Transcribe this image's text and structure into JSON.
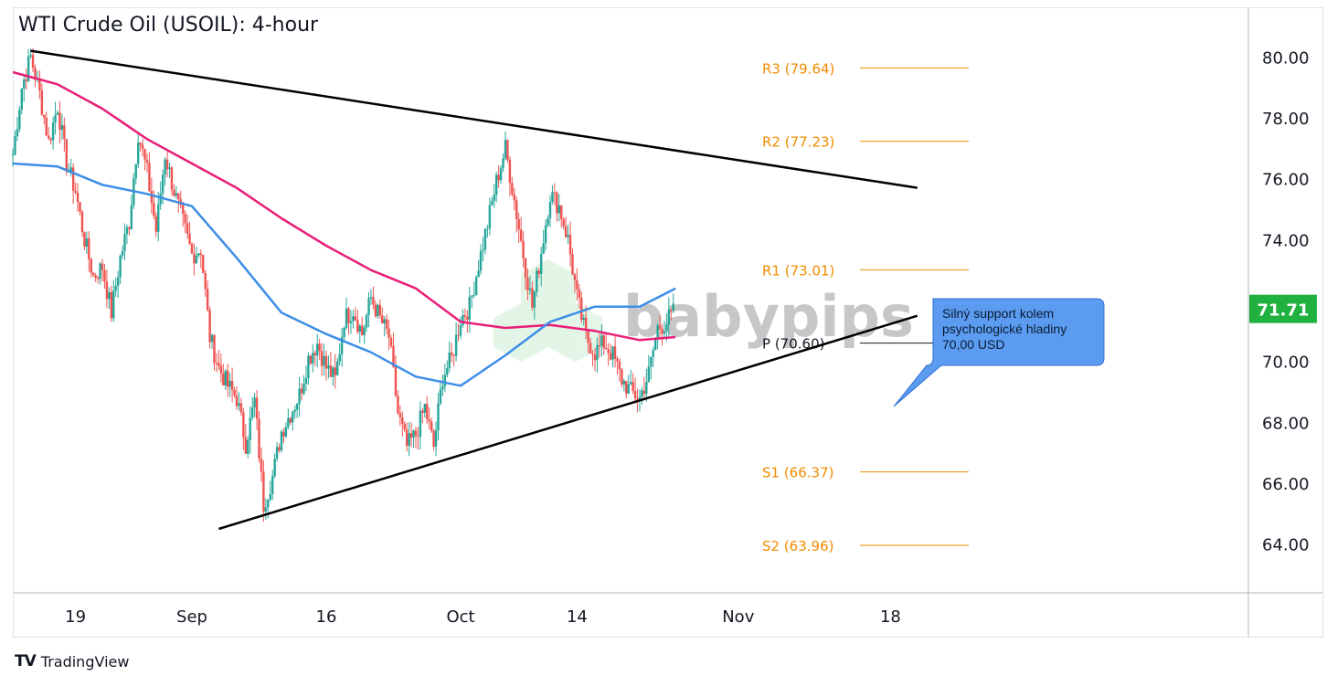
{
  "title": "WTI Crude Oil (USOIL): 4-hour",
  "watermark": "babypips",
  "footer": {
    "brand": "TradingView",
    "logo_icon": "tradingview-logo-icon"
  },
  "colors": {
    "bull": "#26a69a",
    "bear": "#ef5350",
    "ma_slow": "#e91e78",
    "ma_fast": "#3d8ee8",
    "pivot": "#f08c00",
    "trendline": "#000000",
    "last_price_bg": "#21b140",
    "annotation_bg": "#5b9cf0",
    "annotation_border": "#2f6fd0"
  },
  "annotation": {
    "lines": [
      "Silný support kolem",
      "psychologické hladiny",
      "70,00 USD"
    ]
  },
  "chart_data": {
    "type": "candlestick",
    "symbol": "USOIL",
    "timeframe": "4-hour",
    "ylim": [
      62.4,
      81.6
    ],
    "y_ticks": [
      "80.00",
      "78.00",
      "76.00",
      "74.00",
      "72.00",
      "70.00",
      "68.00",
      "66.00",
      "64.00"
    ],
    "x_ticks": [
      "19",
      "Sep",
      "16",
      "Oct",
      "14",
      "Nov",
      "18"
    ],
    "last_price": "71.71",
    "pivot_levels": [
      {
        "label": "R3 (79.64)",
        "value": 79.64
      },
      {
        "label": "R2 (77.23)",
        "value": 77.23
      },
      {
        "label": "R1 (73.01)",
        "value": 73.01
      },
      {
        "label": "P (70.60)",
        "value": 70.6
      },
      {
        "label": "S1 (66.37)",
        "value": 66.37
      },
      {
        "label": "S2 (63.96)",
        "value": 63.96
      }
    ],
    "trendlines": [
      {
        "name": "descending-resistance",
        "from": {
          "date": "Aug 14",
          "price": 80.2
        },
        "to": {
          "date": "Nov 21",
          "price": 75.7
        }
      },
      {
        "name": "rising-support",
        "from": {
          "date": "Sep 4",
          "price": 64.5
        },
        "to": {
          "date": "Nov 21",
          "price": 71.5
        }
      }
    ],
    "close_path": [
      [
        "Aug 12",
        76.8
      ],
      [
        "Aug 13",
        79.0
      ],
      [
        "Aug 14",
        80.0
      ],
      [
        "Aug 15",
        78.8
      ],
      [
        "Aug 16",
        77.2
      ],
      [
        "Aug 17",
        78.4
      ],
      [
        "Aug 18",
        76.5
      ],
      [
        "Aug 19",
        75.6
      ],
      [
        "Aug 20",
        74.0
      ],
      [
        "Aug 21",
        72.8
      ],
      [
        "Aug 22",
        73.1
      ],
      [
        "Aug 23",
        71.6
      ],
      [
        "Aug 24",
        73.4
      ],
      [
        "Aug 25",
        74.6
      ],
      [
        "Aug 26",
        77.5
      ],
      [
        "Aug 27",
        76.2
      ],
      [
        "Aug 28",
        74.3
      ],
      [
        "Aug 29",
        76.8
      ],
      [
        "Aug 30",
        75.6
      ],
      [
        "Sep 1",
        73.5
      ],
      [
        "Sep 2",
        73.7
      ],
      [
        "Sep 3",
        70.8
      ],
      [
        "Sep 4",
        69.8
      ],
      [
        "Sep 5",
        69.2
      ],
      [
        "Sep 6",
        68.8
      ],
      [
        "Sep 7",
        67.3
      ],
      [
        "Sep 8",
        68.7
      ],
      [
        "Sep 9",
        65.3
      ],
      [
        "Sep 10",
        66.2
      ],
      [
        "Sep 11",
        67.7
      ],
      [
        "Sep 12",
        68.3
      ],
      [
        "Sep 13",
        68.9
      ],
      [
        "Sep 14",
        70.1
      ],
      [
        "Sep 15",
        70.6
      ],
      [
        "Sep 16",
        69.8
      ],
      [
        "Sep 17",
        69.4
      ],
      [
        "Sep 18",
        71.4
      ],
      [
        "Sep 19",
        71.7
      ],
      [
        "Sep 20",
        70.9
      ],
      [
        "Sep 21",
        72.1
      ],
      [
        "Sep 22",
        71.4
      ],
      [
        "Sep 23",
        70.8
      ],
      [
        "Sep 24",
        68.3
      ],
      [
        "Sep 25",
        67.2
      ],
      [
        "Sep 26",
        67.6
      ],
      [
        "Sep 27",
        68.5
      ],
      [
        "Sep 28",
        67.2
      ],
      [
        "Sep 29",
        69.5
      ],
      [
        "Sep 30",
        70.1
      ],
      [
        "Oct 1",
        71.4
      ],
      [
        "Oct 2",
        71.8
      ],
      [
        "Oct 3",
        73.2
      ],
      [
        "Oct 4",
        74.5
      ],
      [
        "Oct 5",
        75.9
      ],
      [
        "Oct 6",
        77.0
      ],
      [
        "Oct 7",
        75.3
      ],
      [
        "Oct 8",
        73.5
      ],
      [
        "Oct 9",
        71.8
      ],
      [
        "Oct 10",
        73.6
      ],
      [
        "Oct 11",
        75.5
      ],
      [
        "Oct 12",
        75.1
      ],
      [
        "Oct 13",
        74.0
      ],
      [
        "Oct 14",
        72.1
      ],
      [
        "Oct 15",
        70.8
      ],
      [
        "Oct 16",
        70.3
      ],
      [
        "Oct 17",
        70.6
      ],
      [
        "Oct 18",
        70.2
      ],
      [
        "Oct 19",
        69.4
      ],
      [
        "Oct 20",
        69.0
      ],
      [
        "Oct 21",
        68.8
      ],
      [
        "Oct 22",
        69.6
      ],
      [
        "Oct 23",
        71.1
      ],
      [
        "Oct 24",
        71.3
      ],
      [
        "Oct 25",
        71.7
      ]
    ],
    "series": [
      {
        "name": "",
        "type": "moving-average",
        "color": "#e91e78",
        "points": [
          [
            "Aug 12",
            79.5
          ],
          [
            "Aug 17",
            79.1
          ],
          [
            "Aug 22",
            78.3
          ],
          [
            "Aug 27",
            77.3
          ],
          [
            "Sep 1",
            76.5
          ],
          [
            "Sep 6",
            75.7
          ],
          [
            "Sep 11",
            74.7
          ],
          [
            "Sep 16",
            73.8
          ],
          [
            "Sep 21",
            73.0
          ],
          [
            "Sep 26",
            72.4
          ],
          [
            "Oct 1",
            71.3
          ],
          [
            "Oct 6",
            71.1
          ],
          [
            "Oct 11",
            71.2
          ],
          [
            "Oct 16",
            71.0
          ],
          [
            "Oct 21",
            70.7
          ],
          [
            "Oct 25",
            70.8
          ]
        ]
      },
      {
        "name": "",
        "type": "moving-average",
        "color": "#3d8ee8",
        "points": [
          [
            "Aug 12",
            76.5
          ],
          [
            "Aug 17",
            76.4
          ],
          [
            "Aug 22",
            75.8
          ],
          [
            "Aug 27",
            75.5
          ],
          [
            "Sep 1",
            75.1
          ],
          [
            "Sep 6",
            73.4
          ],
          [
            "Sep 11",
            71.6
          ],
          [
            "Sep 16",
            70.9
          ],
          [
            "Sep 21",
            70.3
          ],
          [
            "Sep 26",
            69.5
          ],
          [
            "Oct 1",
            69.2
          ],
          [
            "Oct 6",
            70.2
          ],
          [
            "Oct 11",
            71.3
          ],
          [
            "Oct 16",
            71.8
          ],
          [
            "Oct 21",
            71.8
          ],
          [
            "Oct 25",
            72.4
          ]
        ]
      }
    ]
  }
}
